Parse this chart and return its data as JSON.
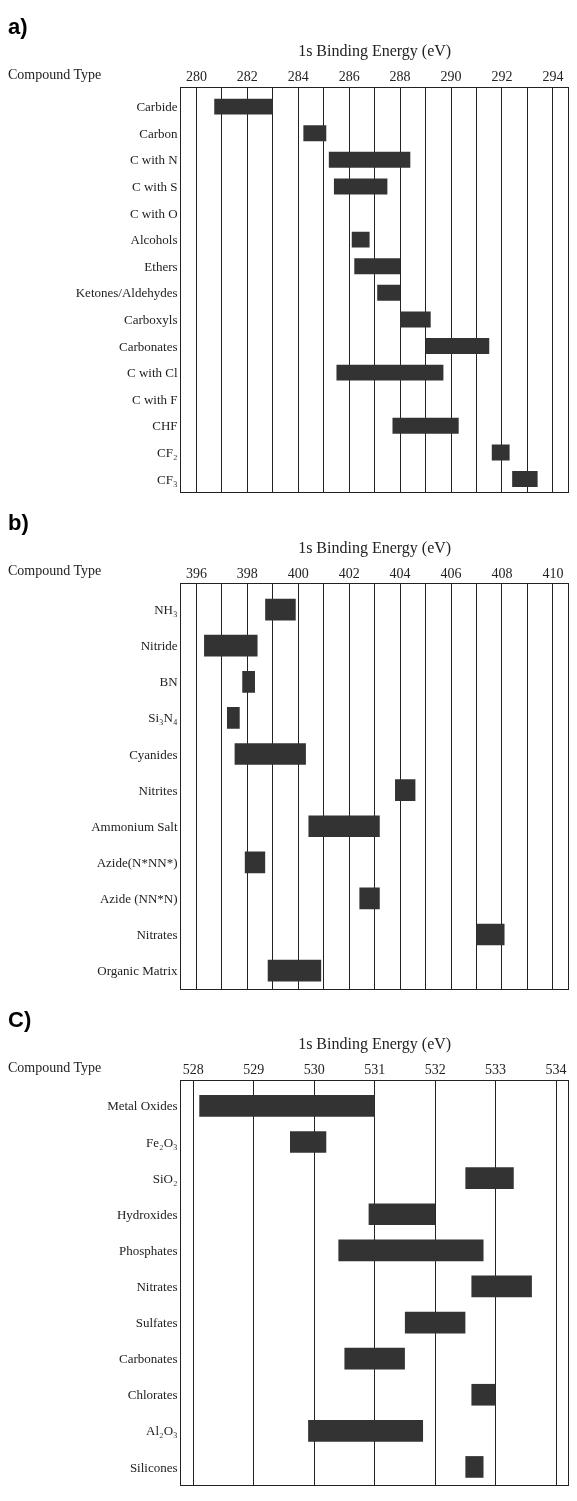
{
  "chart_data": [
    {
      "type": "bar",
      "orientation": "horizontal",
      "title": "a)",
      "xlabel": "1s Binding Energy (eV)",
      "ylabel": "Compound Type",
      "grid": "x",
      "color": "#333333",
      "categories": [
        "Carbide",
        "Carbon",
        "C with N",
        "C with S",
        "C with O",
        "Alcohols",
        "Ethers",
        "Ketones/Aldehydes",
        "Carboxyls",
        "Carbonates",
        "C with Cl",
        "C with F",
        "CHF",
        "CF₂",
        "CF₃"
      ],
      "base": [
        280.7,
        284.2,
        285.2,
        285.4,
        null,
        286.1,
        286.2,
        287.1,
        288.0,
        289.0,
        285.5,
        null,
        287.7,
        291.6,
        292.4
      ],
      "values": [
        2.3,
        0.9,
        3.2,
        2.1,
        null,
        0.7,
        1.8,
        0.9,
        1.2,
        2.5,
        4.2,
        null,
        2.6,
        0.7,
        1.0
      ],
      "xlim": [
        279.4,
        294.6
      ],
      "xticks": [
        280,
        {
          "value": 281,
          "label": null
        },
        282,
        {
          "value": 283,
          "label": null
        },
        284,
        {
          "value": 285,
          "label": null
        },
        286,
        {
          "value": 287,
          "label": null
        },
        288,
        {
          "value": 289,
          "label": null
        },
        290,
        {
          "value": 291,
          "label": null
        },
        292,
        {
          "value": 293,
          "label": null
        },
        294
      ]
    },
    {
      "type": "bar",
      "orientation": "horizontal",
      "title": "b)",
      "xlabel": "1s Binding Energy (eV)",
      "ylabel": "Compound Type",
      "grid": "x",
      "color": "#333333",
      "categories": [
        "NH₃",
        "Nitride",
        "BN",
        "Si₃N₄",
        "Cyanides",
        "Nitrites",
        "Ammonium Salt",
        "Azide(N*NN*)",
        "Azide (NN*N)",
        "Nitrates",
        "Organic Matrix"
      ],
      "base": [
        398.7,
        396.3,
        397.8,
        397.2,
        397.5,
        403.8,
        400.4,
        397.9,
        402.4,
        407.0,
        398.8
      ],
      "values": [
        1.2,
        2.1,
        0.5,
        0.5,
        2.8,
        0.8,
        2.8,
        0.8,
        0.8,
        1.1,
        2.1
      ],
      "xlim": [
        395.4,
        410.6
      ],
      "xticks": [
        396,
        {
          "value": 397,
          "label": null
        },
        398,
        {
          "value": 399,
          "label": null
        },
        400,
        {
          "value": 401,
          "label": null
        },
        402,
        {
          "value": 403,
          "label": null
        },
        404,
        {
          "value": 405,
          "label": null
        },
        406,
        {
          "value": 407,
          "label": null
        },
        408,
        {
          "value": 409,
          "label": null
        },
        410
      ]
    },
    {
      "type": "bar",
      "orientation": "horizontal",
      "title": "C)",
      "xlabel": "1s Binding Energy (eV)",
      "ylabel": "Compound Type",
      "grid": "x",
      "color": "#333333",
      "categories": [
        "Metal Oxides",
        "Fe₂O₃",
        "SiO₂",
        "Hydroxides",
        "Phosphates",
        "Nitrates",
        "Sulfates",
        "Carbonates",
        "Chlorates",
        "Al₂O₃",
        "Silicones"
      ],
      "base": [
        528.1,
        529.6,
        532.5,
        530.9,
        530.4,
        532.6,
        531.5,
        530.5,
        532.6,
        529.9,
        532.5
      ],
      "values": [
        2.9,
        0.6,
        0.8,
        1.1,
        2.4,
        1.0,
        1.0,
        1.0,
        0.4,
        1.9,
        0.3
      ],
      "xlim": [
        527.8,
        534.2
      ],
      "xticks": [
        528,
        529,
        530,
        531,
        532,
        533,
        534
      ]
    }
  ]
}
